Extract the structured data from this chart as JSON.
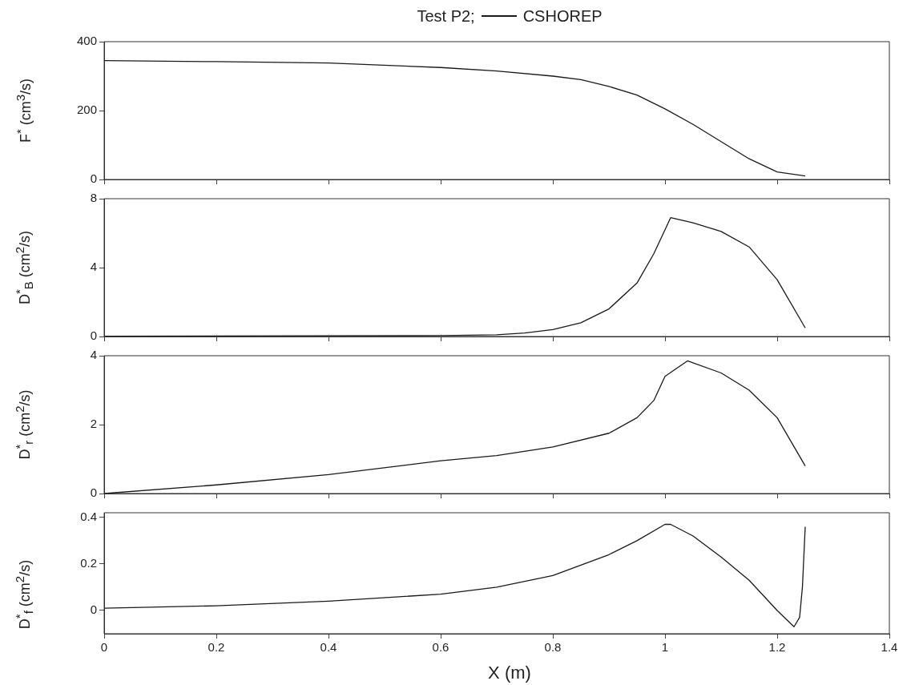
{
  "chart_data": [
    {
      "type": "line",
      "title": "Test P2;",
      "legend": "top",
      "ylabel": "F$^{*}$ (cm$^{3}$/s)",
      "xlim": [
        0,
        1.4
      ],
      "xticks": [
        0,
        0.2,
        0.4,
        0.6,
        0.8,
        1,
        1.2,
        1.4
      ],
      "ylim": [
        0,
        400
      ],
      "yticks": [
        0,
        200,
        400
      ],
      "tick_labels": "y",
      "series": [
        {
          "name": "CSHOREP",
          "color": "#1a1a1a",
          "x": [
            0,
            0.2,
            0.4,
            0.6,
            0.7,
            0.8,
            0.85,
            0.9,
            0.95,
            1.0,
            1.05,
            1.1,
            1.15,
            1.2,
            1.25
          ],
          "values": [
            345,
            342,
            338,
            325,
            315,
            300,
            290,
            270,
            245,
            205,
            160,
            110,
            60,
            22,
            10
          ]
        }
      ]
    },
    {
      "type": "line",
      "ylabel": "D$^{*}$$_{B}$ (cm$^{2}$/s)",
      "xlim": [
        0,
        1.4
      ],
      "xticks": [
        0,
        0.2,
        0.4,
        0.6,
        0.8,
        1,
        1.2,
        1.4
      ],
      "ylim": [
        0,
        8
      ],
      "yticks": [
        0,
        4,
        8
      ],
      "tick_labels": "y",
      "series": [
        {
          "color": "#1a1a1a",
          "x": [
            0,
            0.6,
            0.7,
            0.75,
            0.8,
            0.85,
            0.9,
            0.95,
            0.98,
            1.01,
            1.05,
            1.1,
            1.15,
            1.2,
            1.25
          ],
          "values": [
            0.02,
            0.05,
            0.1,
            0.2,
            0.4,
            0.8,
            1.6,
            3.1,
            4.8,
            6.9,
            6.6,
            6.1,
            5.2,
            3.3,
            0.5
          ]
        }
      ]
    },
    {
      "type": "line",
      "ylabel": "D$^{*}$$_{r}$ (cm$^{2}$/s)",
      "xlim": [
        0,
        1.4
      ],
      "xticks": [
        0,
        0.2,
        0.4,
        0.6,
        0.8,
        1,
        1.2,
        1.4
      ],
      "ylim": [
        0,
        4
      ],
      "yticks": [
        0,
        2,
        4
      ],
      "tick_labels": "y",
      "series": [
        {
          "color": "#1a1a1a",
          "x": [
            0,
            0.2,
            0.4,
            0.6,
            0.7,
            0.8,
            0.9,
            0.95,
            0.98,
            1.0,
            1.04,
            1.1,
            1.15,
            1.2,
            1.25
          ],
          "values": [
            0,
            0.25,
            0.55,
            0.95,
            1.1,
            1.35,
            1.75,
            2.2,
            2.7,
            3.4,
            3.85,
            3.5,
            3.0,
            2.2,
            0.8
          ]
        }
      ]
    },
    {
      "type": "line",
      "ylabel": "D$^{*}$$_{f}$ (cm$^{2}$/s)",
      "xlabel": "X (m)",
      "xlim": [
        0,
        1.4
      ],
      "xticks": [
        0,
        0.2,
        0.4,
        0.6,
        0.8,
        1,
        1.2,
        1.4
      ],
      "ylim": [
        -0.1,
        0.42
      ],
      "yticks": [
        0,
        0.2,
        0.4
      ],
      "series": [
        {
          "color": "#1a1a1a",
          "x": [
            0,
            0.2,
            0.4,
            0.6,
            0.7,
            0.8,
            0.9,
            0.95,
            1.0,
            1.01,
            1.05,
            1.1,
            1.15,
            1.2,
            1.23,
            1.24,
            1.245,
            1.25
          ],
          "values": [
            0.01,
            0.02,
            0.04,
            0.07,
            0.1,
            0.15,
            0.24,
            0.3,
            0.37,
            0.37,
            0.32,
            0.23,
            0.13,
            0.0,
            -0.07,
            -0.03,
            0.1,
            0.36
          ]
        }
      ]
    }
  ]
}
